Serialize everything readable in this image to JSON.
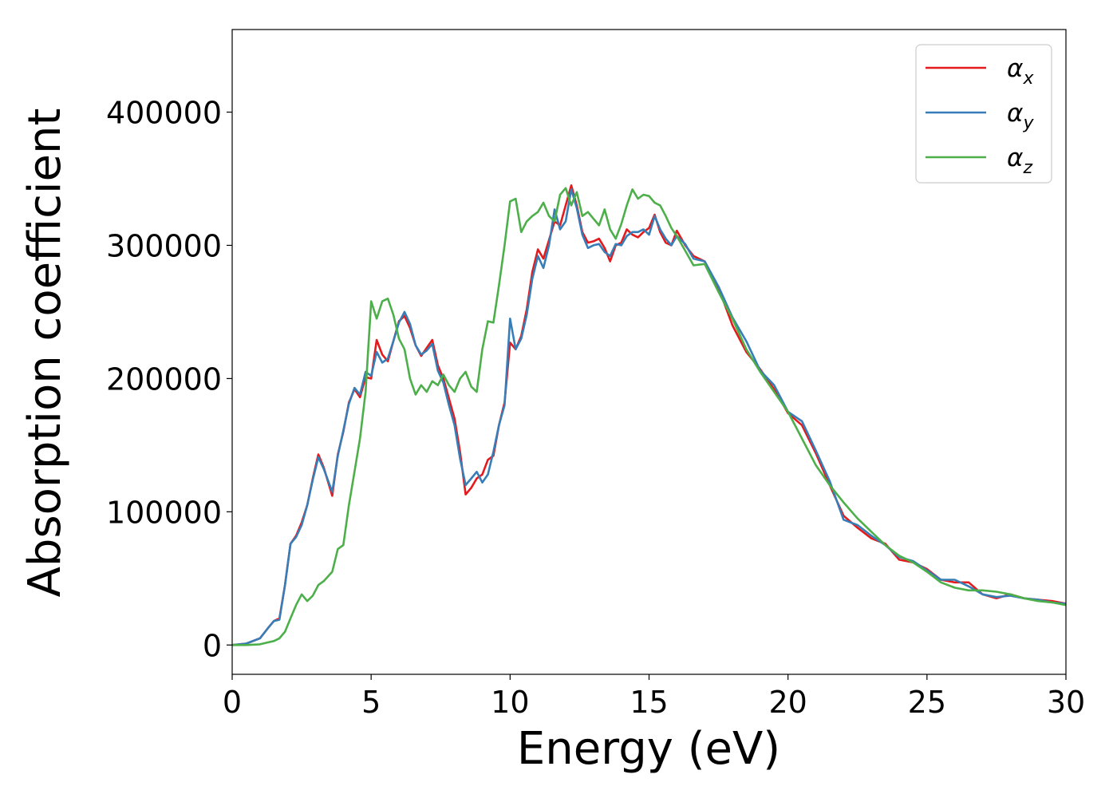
{
  "chart_data": {
    "type": "line",
    "xlabel": "Energy (eV)",
    "ylabel": "Absorption coefficient",
    "xlim": [
      0,
      30
    ],
    "ylim": [
      -22000,
      462000
    ],
    "xticks": [
      0,
      5,
      10,
      15,
      20,
      25,
      30
    ],
    "xtick_labels": [
      "0",
      "5",
      "10",
      "15",
      "20",
      "25",
      "30"
    ],
    "yticks": [
      0,
      100000,
      200000,
      300000,
      400000
    ],
    "ytick_labels": [
      "0",
      "100000",
      "200000",
      "300000",
      "400000"
    ],
    "grid": false,
    "legend_position": "top-right",
    "x": [
      0,
      0.5,
      1.0,
      1.3,
      1.5,
      1.7,
      1.9,
      2.1,
      2.3,
      2.5,
      2.7,
      2.9,
      3.1,
      3.3,
      3.6,
      3.8,
      4.0,
      4.2,
      4.4,
      4.6,
      4.8,
      5.0,
      5.2,
      5.4,
      5.6,
      5.8,
      6.0,
      6.2,
      6.4,
      6.6,
      6.8,
      7.0,
      7.2,
      7.4,
      7.6,
      7.8,
      8.0,
      8.2,
      8.4,
      8.6,
      8.8,
      9.0,
      9.2,
      9.4,
      9.6,
      9.8,
      10.0,
      10.2,
      10.4,
      10.6,
      10.8,
      11.0,
      11.2,
      11.4,
      11.6,
      11.8,
      12.0,
      12.2,
      12.4,
      12.6,
      12.8,
      13.0,
      13.2,
      13.4,
      13.6,
      13.8,
      14.0,
      14.2,
      14.4,
      14.6,
      14.8,
      15.0,
      15.2,
      15.4,
      15.6,
      15.8,
      16.0,
      16.3,
      16.6,
      17.0,
      17.5,
      18.0,
      18.5,
      19.0,
      19.5,
      20.0,
      20.5,
      21.0,
      21.5,
      22.0,
      22.5,
      23.0,
      23.5,
      24.0,
      24.5,
      25.0,
      25.5,
      26.0,
      26.5,
      27.0,
      27.5,
      28.0,
      28.5,
      29.0,
      29.5,
      30.0
    ],
    "series": [
      {
        "name": "αx",
        "sub": "x",
        "color": "#e41a1c",
        "values": [
          0,
          1000,
          5000,
          13000,
          18000,
          20000,
          45000,
          76000,
          82000,
          92000,
          105000,
          125000,
          143000,
          133000,
          112000,
          143000,
          160000,
          182000,
          192000,
          186000,
          201000,
          200000,
          229000,
          218000,
          213000,
          228000,
          243000,
          247000,
          238000,
          225000,
          217000,
          223000,
          229000,
          210000,
          200000,
          185000,
          170000,
          145000,
          113000,
          118000,
          125000,
          128000,
          139000,
          142000,
          165000,
          182000,
          227000,
          222000,
          232000,
          252000,
          280000,
          297000,
          290000,
          304000,
          318000,
          315000,
          330000,
          345000,
          330000,
          310000,
          302000,
          303000,
          305000,
          298000,
          288000,
          300000,
          302000,
          312000,
          308000,
          306000,
          310000,
          313000,
          323000,
          310000,
          302000,
          300000,
          311000,
          300000,
          292000,
          288000,
          268000,
          240000,
          220000,
          207000,
          192000,
          174000,
          165000,
          144000,
          120000,
          97000,
          88000,
          80000,
          76000,
          64000,
          62000,
          57000,
          49000,
          47000,
          47000,
          38000,
          35000,
          38000,
          35000,
          34000,
          33000,
          31000
        ]
      },
      {
        "name": "αy",
        "sub": "y",
        "color": "#377eb8",
        "values": [
          0,
          1000,
          5000,
          13000,
          18000,
          19000,
          45000,
          76000,
          81000,
          90000,
          105000,
          124000,
          141000,
          132000,
          115000,
          142000,
          161000,
          181000,
          193000,
          188000,
          205000,
          202000,
          220000,
          212000,
          215000,
          228000,
          242000,
          250000,
          241000,
          225000,
          218000,
          221000,
          226000,
          206000,
          197000,
          180000,
          165000,
          140000,
          120000,
          125000,
          130000,
          122000,
          128000,
          145000,
          165000,
          180000,
          245000,
          222000,
          230000,
          248000,
          275000,
          292000,
          283000,
          300000,
          327000,
          312000,
          318000,
          342000,
          328000,
          308000,
          298000,
          300000,
          301000,
          295000,
          292000,
          301000,
          300000,
          307000,
          310000,
          310000,
          312000,
          308000,
          322000,
          312000,
          305000,
          300000,
          307000,
          301000,
          290000,
          288000,
          269000,
          246000,
          228000,
          206000,
          195000,
          175000,
          168000,
          146000,
          123000,
          94000,
          90000,
          82000,
          75000,
          66000,
          63000,
          56000,
          49000,
          49000,
          44000,
          38000,
          36000,
          37000,
          35000,
          34000,
          32000,
          31000
        ]
      },
      {
        "name": "αz",
        "sub": "z",
        "color": "#4daf4a",
        "values": [
          0,
          0,
          500,
          2000,
          3000,
          5000,
          10000,
          20000,
          30000,
          38000,
          33000,
          37000,
          45000,
          48000,
          55000,
          72000,
          75000,
          105000,
          130000,
          155000,
          190000,
          258000,
          245000,
          258000,
          260000,
          248000,
          230000,
          222000,
          200000,
          188000,
          195000,
          190000,
          198000,
          195000,
          203000,
          195000,
          190000,
          200000,
          205000,
          194000,
          190000,
          222000,
          243000,
          242000,
          270000,
          300000,
          333000,
          335000,
          310000,
          318000,
          322000,
          325000,
          332000,
          322000,
          318000,
          338000,
          343000,
          330000,
          340000,
          322000,
          325000,
          320000,
          315000,
          327000,
          312000,
          305000,
          316000,
          330000,
          342000,
          335000,
          338000,
          337000,
          332000,
          330000,
          322000,
          313000,
          307000,
          296000,
          285000,
          286000,
          265000,
          245000,
          222000,
          205000,
          190000,
          175000,
          155000,
          135000,
          120000,
          107000,
          95000,
          85000,
          75000,
          67000,
          62000,
          55000,
          47000,
          43000,
          41000,
          41000,
          40000,
          38000,
          35000,
          33000,
          32000,
          30000
        ]
      }
    ]
  }
}
